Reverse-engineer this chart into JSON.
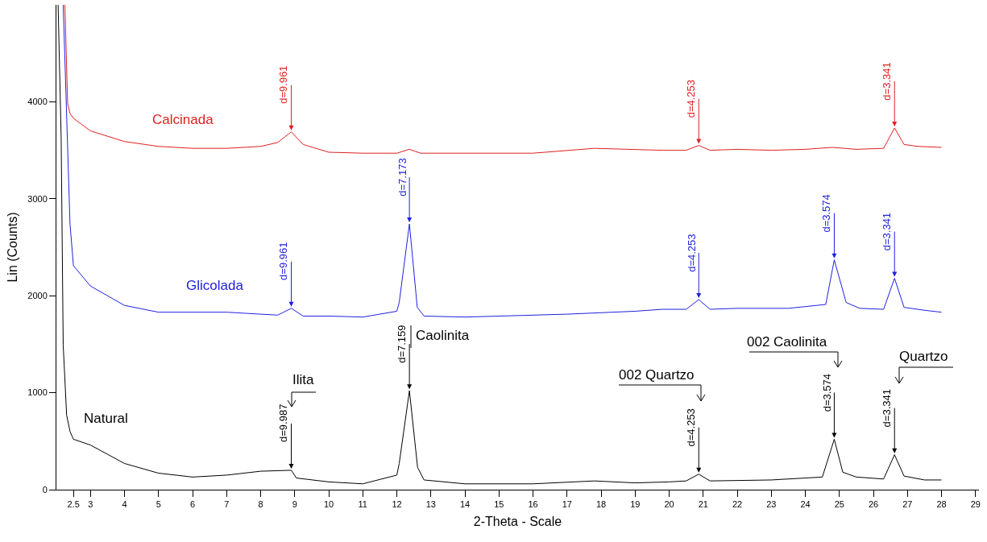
{
  "chart_data": {
    "type": "line",
    "xlabel": "2-Theta - Scale",
    "ylabel": "Lin (Counts)",
    "xlim": [
      2,
      29.1
    ],
    "xticks": [
      2.5,
      3,
      4,
      5,
      6,
      7,
      8,
      9,
      10,
      11,
      12,
      13,
      14,
      15,
      16,
      17,
      18,
      19,
      20,
      21,
      22,
      23,
      24,
      25,
      26,
      27,
      28,
      29
    ],
    "ylim": [
      0,
      5000
    ],
    "yticks": [
      0,
      1000,
      2000,
      3000,
      4000
    ],
    "grid": false,
    "marker": "none",
    "line_style": "solid",
    "series": [
      {
        "name": "Calcinada",
        "color": "#e02020",
        "x": [
          2.25,
          2.33,
          2.4,
          2.5,
          3,
          4,
          5,
          6,
          7,
          8,
          8.5,
          8.9,
          9.25,
          10,
          11,
          12,
          12.37,
          12.7,
          14,
          16,
          17.8,
          19.8,
          20.5,
          20.87,
          21.2,
          22,
          23,
          24,
          24.8,
          25.5,
          26.3,
          26.62,
          26.9,
          27.3,
          28
        ],
        "values": [
          5000,
          3980,
          3880,
          3830,
          3700,
          3590,
          3540,
          3520,
          3520,
          3540,
          3580,
          3690,
          3560,
          3480,
          3470,
          3470,
          3510,
          3470,
          3470,
          3470,
          3520,
          3500,
          3500,
          3550,
          3500,
          3510,
          3500,
          3510,
          3530,
          3510,
          3520,
          3730,
          3560,
          3540,
          3530
        ]
      },
      {
        "name": "Glicolada",
        "color": "#2020e0",
        "x": [
          2.2,
          2.4,
          2.5,
          3,
          4,
          5,
          6,
          7,
          8,
          8.5,
          8.9,
          9.25,
          10,
          11,
          12,
          12.07,
          12.37,
          12.6,
          12.8,
          14,
          17,
          19,
          19.8,
          20.5,
          20.87,
          21.2,
          22,
          23.5,
          24.6,
          24.85,
          25.2,
          25.6,
          26.3,
          26.62,
          26.9,
          27.5,
          28
        ],
        "values": [
          5000,
          2740,
          2310,
          2100,
          1900,
          1830,
          1830,
          1830,
          1810,
          1800,
          1870,
          1790,
          1790,
          1780,
          1840,
          1930,
          2740,
          1880,
          1790,
          1780,
          1810,
          1840,
          1860,
          1860,
          1960,
          1860,
          1870,
          1870,
          1910,
          2370,
          1930,
          1870,
          1860,
          2180,
          1880,
          1850,
          1830
        ]
      },
      {
        "name": "Natural",
        "color": "#000000",
        "x": [
          2.05,
          2.14,
          2.2,
          2.3,
          2.4,
          2.5,
          3,
          4,
          5,
          6,
          7,
          8,
          8.9,
          9.05,
          10,
          11,
          12,
          12.07,
          12.37,
          12.61,
          12.8,
          14,
          16,
          17.8,
          19,
          20,
          20.5,
          20.87,
          21.2,
          23,
          24.5,
          24.85,
          25.1,
          25.5,
          26.3,
          26.62,
          26.9,
          27.5,
          28
        ],
        "values": [
          5000,
          3630,
          1490,
          770,
          600,
          520,
          460,
          270,
          170,
          130,
          150,
          190,
          200,
          120,
          80,
          60,
          150,
          270,
          1020,
          230,
          100,
          60,
          60,
          90,
          70,
          80,
          90,
          160,
          90,
          100,
          130,
          520,
          180,
          130,
          110,
          360,
          140,
          100,
          100
        ]
      }
    ],
    "annotations": [
      {
        "text": "d=9.961",
        "x": 8.9,
        "y": 3690
      },
      {
        "text": "d=4.253",
        "x": 20.87,
        "y": 3550
      },
      {
        "text": "d=3.341",
        "x": 26.62,
        "y": 3730
      },
      {
        "text": "d=9.961",
        "x": 8.9,
        "y": 1870
      },
      {
        "text": "d=7.173",
        "x": 12.37,
        "y": 2740
      },
      {
        "text": "d=4.253",
        "x": 20.87,
        "y": 1960
      },
      {
        "text": "d=3.574",
        "x": 24.85,
        "y": 2370
      },
      {
        "text": "d=3.341",
        "x": 26.62,
        "y": 2180
      },
      {
        "text": "d=9.987",
        "x": 8.9,
        "y": 200
      },
      {
        "text": "d=7.159",
        "x": 12.37,
        "y": 1020
      },
      {
        "text": "d=4.253",
        "x": 20.87,
        "y": 160
      },
      {
        "text": "d=3.574",
        "x": 24.85,
        "y": 520
      },
      {
        "text": "d=3.341",
        "x": 26.62,
        "y": 360
      },
      "Ilita",
      "Caolinita",
      "002 Quartzo",
      "002 Caolinita",
      "Quartzo"
    ]
  }
}
